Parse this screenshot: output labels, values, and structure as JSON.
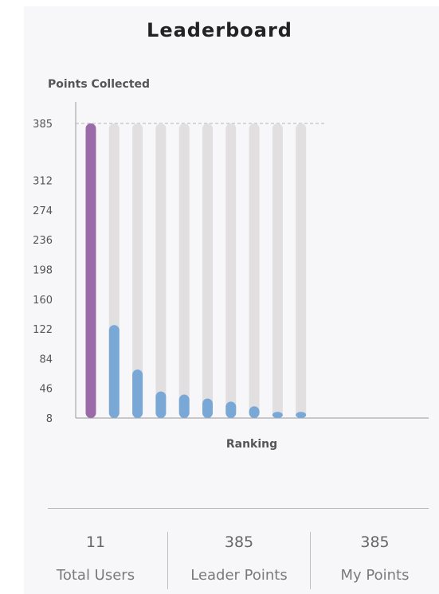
{
  "title": "Leaderboard",
  "colors": {
    "leader": "#9b6aa8",
    "others": "#7aa8d6",
    "track": "#e2dfe1",
    "panel": "#f7f7f9"
  },
  "chart_data": {
    "type": "bar",
    "ylabel": "Points Collected",
    "xlabel": "Ranking",
    "yticks": [
      385,
      312,
      274,
      236,
      198,
      160,
      122,
      84,
      46,
      8
    ],
    "ylim": [
      8,
      385
    ],
    "max_line": 385,
    "values": [
      385,
      127,
      70,
      42,
      38,
      33,
      29,
      23,
      13,
      12
    ],
    "series_colors": [
      "leader",
      "others",
      "others",
      "others",
      "others",
      "others",
      "others",
      "others",
      "others",
      "others"
    ],
    "grid": false
  },
  "stats": [
    {
      "value": "11",
      "label": "Total Users"
    },
    {
      "value": "385",
      "label": "Leader Points"
    },
    {
      "value": "385",
      "label": "My Points"
    }
  ]
}
